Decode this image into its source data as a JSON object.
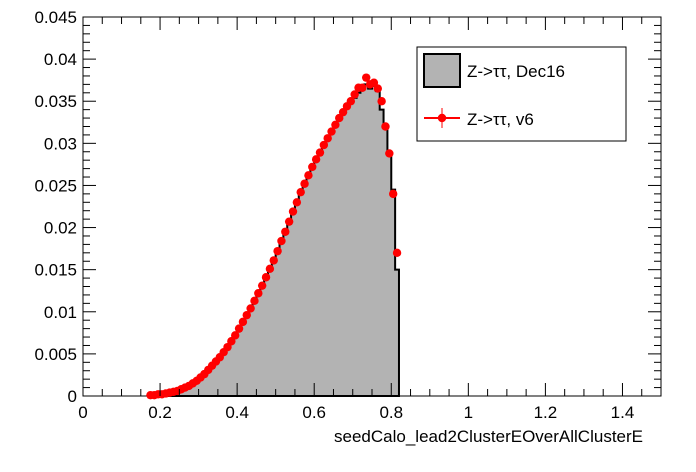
{
  "chart_data": {
    "type": "histogram",
    "xlabel": "seedCalo_lead2ClusterEOverAllClusterE",
    "xlim": [
      0,
      1.5
    ],
    "ylim": [
      0,
      0.045
    ],
    "x_ticks": [
      "0",
      "0.2",
      "0.4",
      "0.6",
      "0.8",
      "1",
      "1.2",
      "1.4"
    ],
    "y_ticks": [
      "0",
      "0.005",
      "0.01",
      "0.015",
      "0.02",
      "0.025",
      "0.03",
      "0.035",
      "0.04",
      "0.045"
    ],
    "bin_width": 0.01,
    "bin_start": 0.17,
    "series": [
      {
        "name": "Z->ττ, Dec16",
        "style": "filled-histogram",
        "fill_color": "#b3b3b3",
        "line_color": "#000000",
        "values": [
          0.0001,
          0.0001,
          0.0002,
          0.0002,
          0.0003,
          0.0004,
          0.0005,
          0.0006,
          0.0008,
          0.001,
          0.0012,
          0.0015,
          0.0018,
          0.0021,
          0.0025,
          0.003,
          0.0035,
          0.004,
          0.0045,
          0.0051,
          0.0057,
          0.0064,
          0.0071,
          0.0079,
          0.0087,
          0.0095,
          0.0103,
          0.0112,
          0.0121,
          0.013,
          0.014,
          0.015,
          0.016,
          0.0171,
          0.0182,
          0.0193,
          0.0205,
          0.0217,
          0.0228,
          0.024,
          0.025,
          0.026,
          0.027,
          0.028,
          0.0288,
          0.0296,
          0.0304,
          0.0312,
          0.032,
          0.0328,
          0.0335,
          0.0342,
          0.0348,
          0.0354,
          0.036,
          0.0365,
          0.037,
          0.0365,
          0.0368,
          0.0362,
          0.034,
          0.032,
          0.029,
          0.0245,
          0.015
        ]
      },
      {
        "name": "Z->ττ, v6",
        "style": "points",
        "color": "#ff0000",
        "values": [
          0.0001,
          0.0001,
          0.0002,
          0.0002,
          0.0003,
          0.0004,
          0.0005,
          0.0006,
          0.0008,
          0.001,
          0.0012,
          0.0015,
          0.0018,
          0.0022,
          0.0026,
          0.0031,
          0.0036,
          0.0041,
          0.0046,
          0.0052,
          0.0058,
          0.0065,
          0.0072,
          0.008,
          0.0088,
          0.0096,
          0.0104,
          0.0113,
          0.0122,
          0.0131,
          0.0141,
          0.0151,
          0.0161,
          0.0172,
          0.0184,
          0.0195,
          0.0207,
          0.0219,
          0.023,
          0.0242,
          0.0252,
          0.0262,
          0.0272,
          0.0281,
          0.0289,
          0.0298,
          0.0306,
          0.0314,
          0.0322,
          0.033,
          0.0337,
          0.0344,
          0.035,
          0.0358,
          0.0366,
          0.0366,
          0.0378,
          0.037,
          0.0372,
          0.0365,
          0.035,
          0.032,
          0.0288,
          0.024,
          0.017
        ]
      }
    ],
    "legend": {
      "placement": "top-right",
      "entries": [
        "Z->ττ, Dec16",
        "Z->ττ, v6"
      ]
    }
  }
}
